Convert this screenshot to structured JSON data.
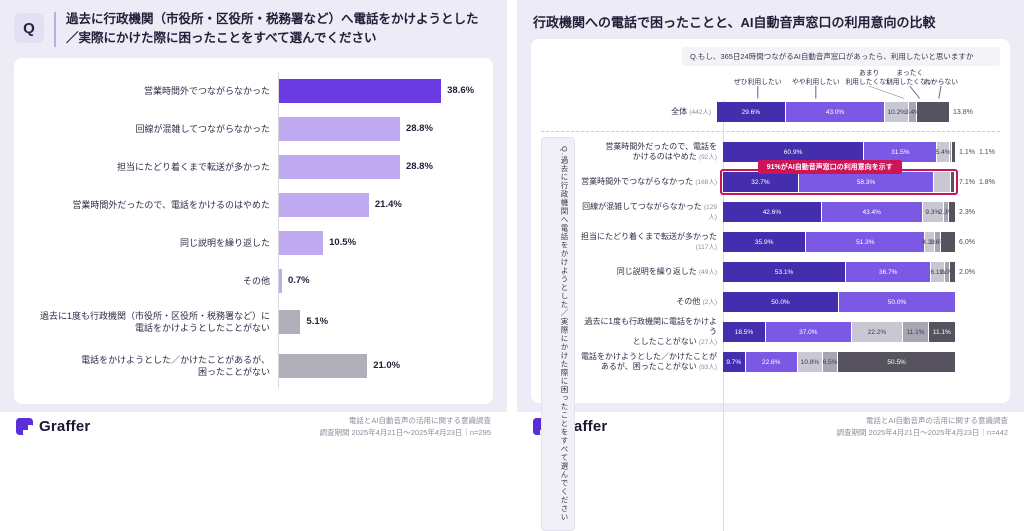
{
  "colors": {
    "bg": "#EDEBF6",
    "accent": "#CE1458",
    "c1": "#452EAD",
    "c2": "#7B59E5",
    "c3": "#C9C7D2",
    "c4": "#A7A5B2",
    "c5": "#56535F",
    "left_main": "#6A3BE3",
    "left_light": "#BFA9EF",
    "left_gray": "#B0AEB8",
    "logo_purple": "#5B2ED8"
  },
  "left_panel": {
    "q_badge": "Q",
    "title_lines": [
      "過去に行政機関（市役所・区役所・税務署など）へ電話をかけようとした",
      "／実際にかけた際に困ったことをすべて選んでください"
    ],
    "footer": {
      "brand": "Graffer",
      "survey_line": "電話とAI自動音声の活用に関する意識調査",
      "period_line": "調査期間 2025年4月21日～2025年4月23日｜n=295"
    }
  },
  "right_panel": {
    "title": "行政機関への電話で困ったことと、AI自動音声窓口の利用意向の比較",
    "question_box": "Q.もし、365日24時間つながるAI自動音声窓口があったら、利用したいと思いますか",
    "side_label": "Q.過去に行政機関へ電話をかけようとした／実際にかけた際に困ったことをすべて選んでください",
    "annotation": "91%がAI自動音声窓口の利用意向を示す",
    "footer": {
      "brand": "Graffer",
      "survey_line": "電話とAI自動音声の活用に関する意識調査",
      "period_line": "調査期間 2025年4月21日～2025年4月23日｜n=442"
    }
  },
  "chart_data": [
    {
      "type": "bar",
      "orientation": "horizontal",
      "title": "過去に行政機関（市役所・区役所・税務署など）へ電話をかけようとした／実際にかけた際に困ったことをすべて選んでください",
      "unit": "%",
      "xlim": [
        0,
        40
      ],
      "n": 295,
      "rows": [
        {
          "label_lines": [
            "営業時間外でつながらなかった"
          ],
          "value": 38.6,
          "display": "38.6%",
          "color": "left_main"
        },
        {
          "label_lines": [
            "回線が混雑してつながらなかった"
          ],
          "value": 28.8,
          "display": "28.8%",
          "color": "left_light"
        },
        {
          "label_lines": [
            "担当にたどり着くまで転送が多かった"
          ],
          "value": 28.8,
          "display": "28.8%",
          "color": "left_light"
        },
        {
          "label_lines": [
            "営業時間外だったので、電話をかけるのはやめた"
          ],
          "value": 21.4,
          "display": "21.4%",
          "color": "left_light"
        },
        {
          "label_lines": [
            "同じ説明を繰り返した"
          ],
          "value": 10.5,
          "display": "10.5%",
          "color": "left_light"
        },
        {
          "label_lines": [
            "その他"
          ],
          "value": 0.7,
          "display": "0.7%",
          "color": "left_light"
        },
        {
          "label_lines": [
            "過去に1度も行政機関（市役所・区役所・税務署など）に",
            "電話をかけようとしたことがない"
          ],
          "value": 5.1,
          "display": "5.1%",
          "color": "left_gray",
          "tall": true
        },
        {
          "label_lines": [
            "電話をかけようとした／かけたことがあるが、",
            "困ったことがない"
          ],
          "value": 21.0,
          "display": "21.0%",
          "color": "left_gray",
          "tall": true
        }
      ]
    },
    {
      "type": "stacked-bar",
      "orientation": "horizontal",
      "title": "行政機関への電話で困ったことと、AI自動音声窓口の利用意向の比較",
      "unit": "%",
      "xlim": [
        0,
        100
      ],
      "legend": [
        {
          "lines": [
            "ぜひ利用したい"
          ],
          "color": "c1",
          "cx": 15,
          "tx": 15
        },
        {
          "lines": [
            "やや利用したい"
          ],
          "color": "c2",
          "cx": 40,
          "tx": 40
        },
        {
          "lines": [
            "あまり",
            "利用したくない"
          ],
          "color": "c3",
          "cx": 63,
          "tx": 78
        },
        {
          "lines": [
            "まったく",
            "利用したくない"
          ],
          "color": "c4",
          "cx": 80.5,
          "tx": 84.8
        },
        {
          "lines": [
            "わからない"
          ],
          "color": "c5",
          "cx": 94,
          "tx": 93
        }
      ],
      "overall": {
        "label": "全体",
        "count": "(442人)",
        "segments": [
          {
            "v": 29.6,
            "d": "29.6%",
            "c": "c1"
          },
          {
            "v": 43.0,
            "d": "43.0%",
            "c": "c2"
          },
          {
            "v": 10.2,
            "d": "10.2%",
            "c": "c3"
          },
          {
            "v": 3.4,
            "d": "3.4%",
            "c": "c4"
          },
          {
            "v": 13.8,
            "d": "13.8%",
            "c": "c5",
            "out": true
          }
        ]
      },
      "rows": [
        {
          "label_lines": [
            "営業時間外だったので、電話を",
            "かけるのはやめた"
          ],
          "count": "(92人)",
          "segments": [
            {
              "v": 60.9,
              "d": "60.9%",
              "c": "c1"
            },
            {
              "v": 31.5,
              "d": "31.5%",
              "c": "c2"
            },
            {
              "v": 5.4,
              "d": "5.4%",
              "c": "c3"
            },
            {
              "v": 1.1,
              "d": "1.1%",
              "c": "c4",
              "out": true
            },
            {
              "v": 1.1,
              "d": "1.1%",
              "c": "c5",
              "out": true
            }
          ]
        },
        {
          "label_lines": [
            "営業時間外でつながらなかった"
          ],
          "count": "(168人)",
          "annotated": true,
          "segments": [
            {
              "v": 32.7,
              "d": "32.7%",
              "c": "c1"
            },
            {
              "v": 58.3,
              "d": "58.3%",
              "c": "c2"
            },
            {
              "v": 7.1,
              "d": "7.1%",
              "c": "c3",
              "out": true
            },
            {
              "v": 1.8,
              "d": "1.8%",
              "c": "c5",
              "out": true
            }
          ]
        },
        {
          "label_lines": [
            "回線が混雑してつながらなかった"
          ],
          "count": "(129人)",
          "segments": [
            {
              "v": 42.6,
              "d": "42.6%",
              "c": "c1"
            },
            {
              "v": 43.4,
              "d": "43.4%",
              "c": "c2"
            },
            {
              "v": 9.3,
              "d": "9.3%",
              "c": "c3"
            },
            {
              "v": 2.3,
              "d": "2.3%",
              "c": "c4"
            },
            {
              "v": 2.3,
              "d": "2.3%",
              "c": "c5",
              "out": true
            }
          ]
        },
        {
          "label_lines": [
            "担当にたどり着くまで転送が多かった"
          ],
          "count": "(117人)",
          "segments": [
            {
              "v": 35.9,
              "d": "35.9%",
              "c": "c1"
            },
            {
              "v": 51.3,
              "d": "51.3%",
              "c": "c2"
            },
            {
              "v": 4.3,
              "d": "4.3%",
              "c": "c3"
            },
            {
              "v": 2.6,
              "d": "2.6%",
              "c": "c4"
            },
            {
              "v": 6.0,
              "d": "6.0%",
              "c": "c5",
              "out": true
            }
          ]
        },
        {
          "label_lines": [
            "同じ説明を繰り返した"
          ],
          "count": "(49人)",
          "segments": [
            {
              "v": 53.1,
              "d": "53.1%",
              "c": "c1"
            },
            {
              "v": 36.7,
              "d": "36.7%",
              "c": "c2"
            },
            {
              "v": 6.1,
              "d": "6.1%",
              "c": "c3"
            },
            {
              "v": 2.0,
              "d": "2.0%",
              "c": "c4"
            },
            {
              "v": 2.0,
              "d": "2.0%",
              "c": "c5",
              "out": true
            }
          ]
        },
        {
          "label_lines": [
            "その他"
          ],
          "count": "(2人)",
          "segments": [
            {
              "v": 50.0,
              "d": "50.0%",
              "c": "c1"
            },
            {
              "v": 50.0,
              "d": "50.0%",
              "c": "c2"
            }
          ]
        },
        {
          "label_lines": [
            "過去に1度も行政機関に電話をかけよう",
            "としたことがない"
          ],
          "count": "(27人)",
          "segments": [
            {
              "v": 18.5,
              "d": "18.5%",
              "c": "c1"
            },
            {
              "v": 37.0,
              "d": "37.0%",
              "c": "c2"
            },
            {
              "v": 22.2,
              "d": "22.2%",
              "c": "c3"
            },
            {
              "v": 11.1,
              "d": "11.1%",
              "c": "c4"
            },
            {
              "v": 11.1,
              "d": "11.1%",
              "c": "c5"
            }
          ]
        },
        {
          "label_lines": [
            "電話をかけようとした／かけたことが",
            "あるが、困ったことがない"
          ],
          "count": "(93人)",
          "segments": [
            {
              "v": 9.7,
              "d": "9.7%",
              "c": "c1"
            },
            {
              "v": 22.6,
              "d": "22.6%",
              "c": "c2"
            },
            {
              "v": 10.8,
              "d": "10.8%",
              "c": "c3"
            },
            {
              "v": 6.5,
              "d": "6.5%",
              "c": "c4"
            },
            {
              "v": 50.5,
              "d": "50.5%",
              "c": "c5"
            }
          ]
        }
      ]
    }
  ]
}
